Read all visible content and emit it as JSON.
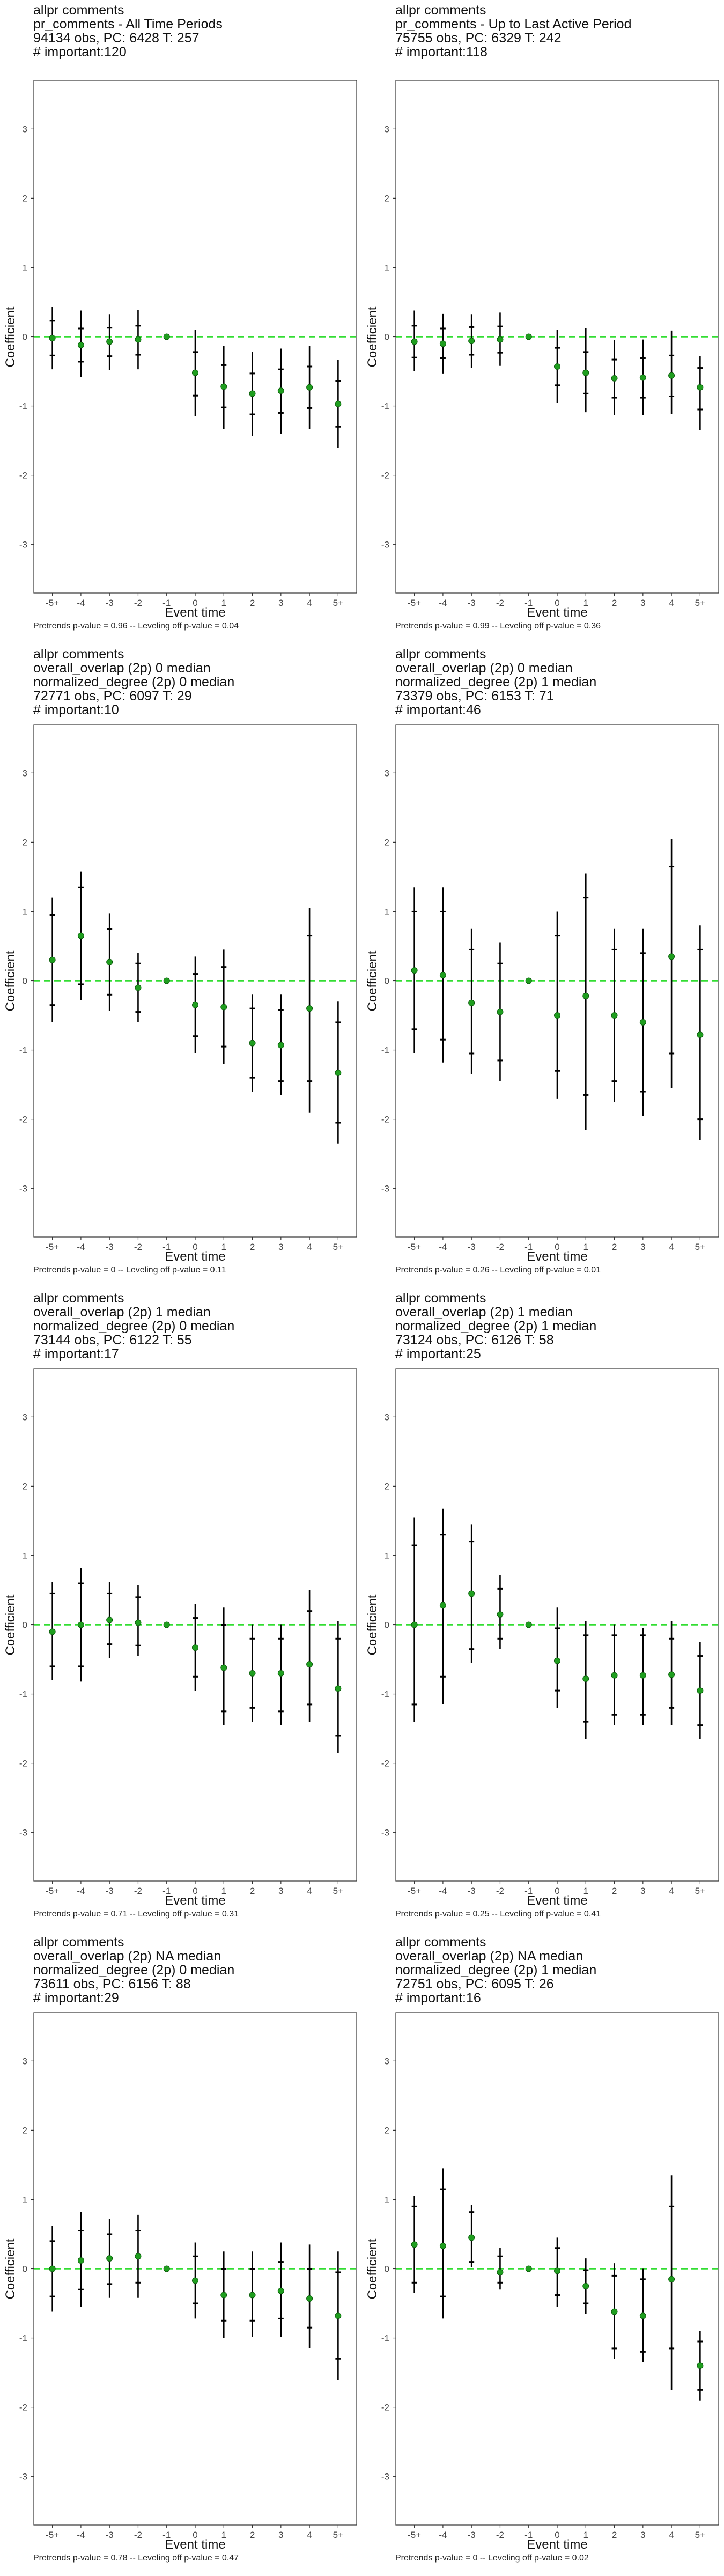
{
  "chart_data": [
    {
      "type": "scatter",
      "title_lines": [
        "allpr comments",
        "pr_comments - All Time Periods",
        "94134 obs, PC: 6428 T: 257",
        "# important:120"
      ],
      "footer": "Pretrends p-value = 0.96 -- Leveling off p-value = 0.04",
      "xlabel": "Event time",
      "ylabel": "Coefficient",
      "categories": [
        "-5+",
        "-4",
        "-3",
        "-2",
        "-1",
        "0",
        "1",
        "2",
        "3",
        "4",
        "5+"
      ],
      "yticks": [
        -3,
        -2,
        -1,
        0,
        1,
        2,
        3
      ],
      "ylim": [
        -3.7,
        3.7
      ],
      "reference_line": 0,
      "colors": {
        "point": "#1f9e1f",
        "reference": "#33dd33",
        "bar": "#000000"
      },
      "estimate": [
        -0.02,
        -0.12,
        -0.07,
        -0.04,
        0,
        -0.52,
        -0.72,
        -0.82,
        -0.78,
        -0.73,
        -0.97
      ],
      "ci_outer": [
        [
          -0.47,
          0.43
        ],
        [
          -0.58,
          0.38
        ],
        [
          -0.48,
          0.32
        ],
        [
          -0.47,
          0.39
        ],
        [
          0,
          0
        ],
        [
          -1.15,
          0.1
        ],
        [
          -1.33,
          -0.13
        ],
        [
          -1.43,
          -0.22
        ],
        [
          -1.4,
          -0.17
        ],
        [
          -1.33,
          -0.13
        ],
        [
          -1.6,
          -0.33
        ]
      ],
      "ci_inner": [
        [
          -0.27,
          0.23
        ],
        [
          -0.36,
          0.12
        ],
        [
          -0.28,
          0.13
        ],
        [
          -0.26,
          0.16
        ],
        [
          0,
          0
        ],
        [
          -0.85,
          -0.22
        ],
        [
          -1.02,
          -0.41
        ],
        [
          -1.12,
          -0.53
        ],
        [
          -1.1,
          -0.47
        ],
        [
          -1.03,
          -0.43
        ],
        [
          -1.3,
          -0.64
        ]
      ]
    },
    {
      "type": "scatter",
      "title_lines": [
        "allpr comments",
        "pr_comments - Up to Last Active Period",
        "75755 obs, PC: 6329 T: 242",
        "# important:118"
      ],
      "footer": "Pretrends p-value = 0.99 -- Leveling off p-value = 0.36",
      "xlabel": "Event time",
      "ylabel": "Coefficient",
      "categories": [
        "-5+",
        "-4",
        "-3",
        "-2",
        "-1",
        "0",
        "1",
        "2",
        "3",
        "4",
        "5+"
      ],
      "yticks": [
        -3,
        -2,
        -1,
        0,
        1,
        2,
        3
      ],
      "ylim": [
        -3.7,
        3.7
      ],
      "reference_line": 0,
      "colors": {
        "point": "#1f9e1f",
        "reference": "#33dd33",
        "bar": "#000000"
      },
      "estimate": [
        -0.07,
        -0.1,
        -0.06,
        -0.04,
        0,
        -0.43,
        -0.52,
        -0.6,
        -0.59,
        -0.56,
        -0.73
      ],
      "ci_outer": [
        [
          -0.5,
          0.38
        ],
        [
          -0.53,
          0.33
        ],
        [
          -0.45,
          0.32
        ],
        [
          -0.42,
          0.35
        ],
        [
          0,
          0
        ],
        [
          -0.95,
          0.1
        ],
        [
          -1.09,
          0.12
        ],
        [
          -1.13,
          -0.05
        ],
        [
          -1.13,
          -0.04
        ],
        [
          -1.12,
          0.09
        ],
        [
          -1.35,
          -0.28
        ]
      ],
      "ci_inner": [
        [
          -0.3,
          0.16
        ],
        [
          -0.31,
          0.12
        ],
        [
          -0.26,
          0.14
        ],
        [
          -0.23,
          0.15
        ],
        [
          0,
          0
        ],
        [
          -0.7,
          -0.16
        ],
        [
          -0.82,
          -0.22
        ],
        [
          -0.88,
          -0.33
        ],
        [
          -0.88,
          -0.31
        ],
        [
          -0.86,
          -0.27
        ],
        [
          -1.05,
          -0.45
        ]
      ]
    },
    {
      "type": "scatter",
      "title_lines": [
        "allpr comments",
        "overall_overlap (2p) 0 median",
        "normalized_degree (2p) 0 median",
        "72771 obs, PC: 6097 T: 29",
        "# important:10"
      ],
      "footer": "Pretrends p-value = 0 -- Leveling off p-value = 0.11",
      "xlabel": "Event time",
      "ylabel": "Coefficient",
      "categories": [
        "-5+",
        "-4",
        "-3",
        "-2",
        "-1",
        "0",
        "1",
        "2",
        "3",
        "4",
        "5+"
      ],
      "yticks": [
        -3,
        -2,
        -1,
        0,
        1,
        2,
        3
      ],
      "ylim": [
        -3.7,
        3.7
      ],
      "reference_line": 0,
      "colors": {
        "point": "#1f9e1f",
        "reference": "#33dd33",
        "bar": "#000000"
      },
      "estimate": [
        0.3,
        0.65,
        0.27,
        -0.1,
        0,
        -0.35,
        -0.38,
        -0.9,
        -0.93,
        -0.4,
        -1.33
      ],
      "ci_outer": [
        [
          -0.6,
          1.2
        ],
        [
          -0.28,
          1.58
        ],
        [
          -0.43,
          0.97
        ],
        [
          -0.6,
          0.4
        ],
        [
          0,
          0
        ],
        [
          -1.05,
          0.35
        ],
        [
          -1.2,
          0.45
        ],
        [
          -1.6,
          -0.2
        ],
        [
          -1.65,
          -0.2
        ],
        [
          -1.9,
          1.05
        ],
        [
          -2.35,
          -0.3
        ]
      ],
      "ci_inner": [
        [
          -0.35,
          0.95
        ],
        [
          -0.05,
          1.35
        ],
        [
          -0.2,
          0.75
        ],
        [
          -0.45,
          0.25
        ],
        [
          0,
          0
        ],
        [
          -0.8,
          0.1
        ],
        [
          -0.95,
          0.2
        ],
        [
          -1.4,
          -0.4
        ],
        [
          -1.45,
          -0.42
        ],
        [
          -1.45,
          0.65
        ],
        [
          -2.05,
          -0.6
        ]
      ]
    },
    {
      "type": "scatter",
      "title_lines": [
        "allpr comments",
        "overall_overlap (2p) 0 median",
        "normalized_degree (2p) 1 median",
        "73379 obs, PC: 6153 T: 71",
        "# important:46"
      ],
      "footer": "Pretrends p-value = 0.26 -- Leveling off p-value = 0.01",
      "xlabel": "Event time",
      "ylabel": "Coefficient",
      "categories": [
        "-5+",
        "-4",
        "-3",
        "-2",
        "-1",
        "0",
        "1",
        "2",
        "3",
        "4",
        "5+"
      ],
      "yticks": [
        -3,
        -2,
        -1,
        0,
        1,
        2,
        3
      ],
      "ylim": [
        -3.7,
        3.7
      ],
      "reference_line": 0,
      "colors": {
        "point": "#1f9e1f",
        "reference": "#33dd33",
        "bar": "#000000"
      },
      "estimate": [
        0.15,
        0.08,
        -0.32,
        -0.45,
        0,
        -0.5,
        -0.22,
        -0.5,
        -0.6,
        0.35,
        -0.78
      ],
      "ci_outer": [
        [
          -1.05,
          1.35
        ],
        [
          -1.18,
          1.35
        ],
        [
          -1.35,
          0.75
        ],
        [
          -1.45,
          0.55
        ],
        [
          0,
          0
        ],
        [
          -1.7,
          1.0
        ],
        [
          -2.15,
          1.55
        ],
        [
          -1.75,
          0.75
        ],
        [
          -1.95,
          0.75
        ],
        [
          -1.55,
          2.05
        ],
        [
          -2.3,
          0.8
        ]
      ],
      "ci_inner": [
        [
          -0.7,
          1.0
        ],
        [
          -0.85,
          1.0
        ],
        [
          -1.05,
          0.45
        ],
        [
          -1.15,
          0.25
        ],
        [
          0,
          0
        ],
        [
          -1.3,
          0.65
        ],
        [
          -1.65,
          1.2
        ],
        [
          -1.45,
          0.45
        ],
        [
          -1.6,
          0.4
        ],
        [
          -1.05,
          1.65
        ],
        [
          -2.0,
          0.45
        ]
      ]
    },
    {
      "type": "scatter",
      "title_lines": [
        "allpr comments",
        "overall_overlap (2p) 1 median",
        "normalized_degree (2p) 0 median",
        "73144 obs, PC: 6122 T: 55",
        "# important:17"
      ],
      "footer": "Pretrends p-value = 0.71 -- Leveling off p-value = 0.31",
      "xlabel": "Event time",
      "ylabel": "Coefficient",
      "categories": [
        "-5+",
        "-4",
        "-3",
        "-2",
        "-1",
        "0",
        "1",
        "2",
        "3",
        "4",
        "5+"
      ],
      "yticks": [
        -3,
        -2,
        -1,
        0,
        1,
        2,
        3
      ],
      "ylim": [
        -3.7,
        3.7
      ],
      "reference_line": 0,
      "colors": {
        "point": "#1f9e1f",
        "reference": "#33dd33",
        "bar": "#000000"
      },
      "estimate": [
        -0.1,
        0.0,
        0.07,
        0.03,
        0,
        -0.33,
        -0.62,
        -0.7,
        -0.7,
        -0.57,
        -0.92
      ],
      "ci_outer": [
        [
          -0.8,
          0.62
        ],
        [
          -0.82,
          0.82
        ],
        [
          -0.48,
          0.62
        ],
        [
          -0.45,
          0.57
        ],
        [
          0,
          0
        ],
        [
          -0.95,
          0.3
        ],
        [
          -1.45,
          0.25
        ],
        [
          -1.4,
          0.0
        ],
        [
          -1.45,
          0.0
        ],
        [
          -1.4,
          0.5
        ],
        [
          -1.85,
          0.05
        ]
      ],
      "ci_inner": [
        [
          -0.6,
          0.45
        ],
        [
          -0.6,
          0.6
        ],
        [
          -0.28,
          0.45
        ],
        [
          -0.3,
          0.4
        ],
        [
          0,
          0
        ],
        [
          -0.75,
          0.1
        ],
        [
          -1.25,
          0.0
        ],
        [
          -1.2,
          -0.2
        ],
        [
          -1.25,
          -0.2
        ],
        [
          -1.15,
          0.2
        ],
        [
          -1.6,
          -0.2
        ]
      ]
    },
    {
      "type": "scatter",
      "title_lines": [
        "allpr comments",
        "overall_overlap (2p) 1 median",
        "normalized_degree (2p) 1 median",
        "73124 obs, PC: 6126 T: 58",
        "# important:25"
      ],
      "footer": "Pretrends p-value = 0.25 -- Leveling off p-value = 0.41",
      "xlabel": "Event time",
      "ylabel": "Coefficient",
      "categories": [
        "-5+",
        "-4",
        "-3",
        "-2",
        "-1",
        "0",
        "1",
        "2",
        "3",
        "4",
        "5+"
      ],
      "yticks": [
        -3,
        -2,
        -1,
        0,
        1,
        2,
        3
      ],
      "ylim": [
        -3.7,
        3.7
      ],
      "reference_line": 0,
      "colors": {
        "point": "#1f9e1f",
        "reference": "#33dd33",
        "bar": "#000000"
      },
      "estimate": [
        0.0,
        0.28,
        0.45,
        0.15,
        0,
        -0.52,
        -0.78,
        -0.73,
        -0.73,
        -0.72,
        -0.95
      ],
      "ci_outer": [
        [
          -1.4,
          1.55
        ],
        [
          -1.15,
          1.68
        ],
        [
          -0.55,
          1.45
        ],
        [
          -0.35,
          0.72
        ],
        [
          0,
          0
        ],
        [
          -1.2,
          0.25
        ],
        [
          -1.65,
          0.05
        ],
        [
          -1.45,
          0.0
        ],
        [
          -1.45,
          -0.05
        ],
        [
          -1.45,
          0.05
        ],
        [
          -1.65,
          -0.25
        ]
      ],
      "ci_inner": [
        [
          -1.15,
          1.15
        ],
        [
          -0.75,
          1.3
        ],
        [
          -0.35,
          1.2
        ],
        [
          -0.2,
          0.52
        ],
        [
          0,
          0
        ],
        [
          -0.95,
          -0.05
        ],
        [
          -1.4,
          -0.15
        ],
        [
          -1.3,
          -0.15
        ],
        [
          -1.3,
          -0.15
        ],
        [
          -1.2,
          -0.2
        ],
        [
          -1.45,
          -0.45
        ]
      ]
    },
    {
      "type": "scatter",
      "title_lines": [
        "allpr comments",
        "overall_overlap (2p) NA median",
        "normalized_degree (2p) 0 median",
        "73611 obs, PC: 6156 T: 88",
        "# important:29"
      ],
      "footer": "Pretrends p-value = 0.78 -- Leveling off p-value = 0.47",
      "xlabel": "Event time",
      "ylabel": "Coefficient",
      "categories": [
        "-5+",
        "-4",
        "-3",
        "-2",
        "-1",
        "0",
        "1",
        "2",
        "3",
        "4",
        "5+"
      ],
      "yticks": [
        -3,
        -2,
        -1,
        0,
        1,
        2,
        3
      ],
      "ylim": [
        -3.7,
        3.7
      ],
      "reference_line": 0,
      "colors": {
        "point": "#1f9e1f",
        "reference": "#33dd33",
        "bar": "#000000"
      },
      "estimate": [
        0.0,
        0.12,
        0.15,
        0.18,
        0,
        -0.17,
        -0.38,
        -0.38,
        -0.32,
        -0.43,
        -0.68
      ],
      "ci_outer": [
        [
          -0.62,
          0.62
        ],
        [
          -0.55,
          0.82
        ],
        [
          -0.42,
          0.72
        ],
        [
          -0.42,
          0.78
        ],
        [
          0,
          0
        ],
        [
          -0.72,
          0.38
        ],
        [
          -1.0,
          0.25
        ],
        [
          -0.98,
          0.25
        ],
        [
          -0.98,
          0.38
        ],
        [
          -1.15,
          0.35
        ],
        [
          -1.6,
          0.25
        ]
      ],
      "ci_inner": [
        [
          -0.4,
          0.4
        ],
        [
          -0.3,
          0.55
        ],
        [
          -0.22,
          0.5
        ],
        [
          -0.2,
          0.55
        ],
        [
          0,
          0
        ],
        [
          -0.5,
          0.18
        ],
        [
          -0.75,
          0.0
        ],
        [
          -0.75,
          0.0
        ],
        [
          -0.72,
          0.1
        ],
        [
          -0.85,
          0.0
        ],
        [
          -1.3,
          -0.05
        ]
      ]
    },
    {
      "type": "scatter",
      "title_lines": [
        "allpr comments",
        "overall_overlap (2p) NA median",
        "normalized_degree (2p) 1 median",
        "72751 obs, PC: 6095 T: 26",
        "# important:16"
      ],
      "footer": "Pretrends p-value = 0 -- Leveling off p-value = 0.02",
      "xlabel": "Event time",
      "ylabel": "Coefficient",
      "categories": [
        "-5+",
        "-4",
        "-3",
        "-2",
        "-1",
        "0",
        "1",
        "2",
        "3",
        "4",
        "5+"
      ],
      "yticks": [
        -3,
        -2,
        -1,
        0,
        1,
        2,
        3
      ],
      "ylim": [
        -3.7,
        3.7
      ],
      "reference_line": 0,
      "colors": {
        "point": "#1f9e1f",
        "reference": "#33dd33",
        "bar": "#000000"
      },
      "estimate": [
        0.35,
        0.33,
        0.45,
        -0.05,
        0,
        -0.03,
        -0.25,
        -0.62,
        -0.68,
        -0.15,
        -1.4
      ],
      "ci_outer": [
        [
          -0.35,
          1.05
        ],
        [
          -0.72,
          1.45
        ],
        [
          0.02,
          0.92
        ],
        [
          -0.3,
          0.3
        ],
        [
          0,
          0
        ],
        [
          -0.55,
          0.45
        ],
        [
          -0.65,
          0.15
        ],
        [
          -1.3,
          0.08
        ],
        [
          -1.35,
          0.0
        ],
        [
          -1.75,
          1.35
        ],
        [
          -1.9,
          -0.9
        ]
      ],
      "ci_inner": [
        [
          -0.2,
          0.9
        ],
        [
          -0.4,
          1.15
        ],
        [
          0.1,
          0.82
        ],
        [
          -0.2,
          0.18
        ],
        [
          0,
          0
        ],
        [
          -0.38,
          0.3
        ],
        [
          -0.5,
          -0.02
        ],
        [
          -1.15,
          -0.1
        ],
        [
          -1.2,
          -0.15
        ],
        [
          -1.15,
          0.9
        ],
        [
          -1.75,
          -1.05
        ]
      ]
    }
  ]
}
